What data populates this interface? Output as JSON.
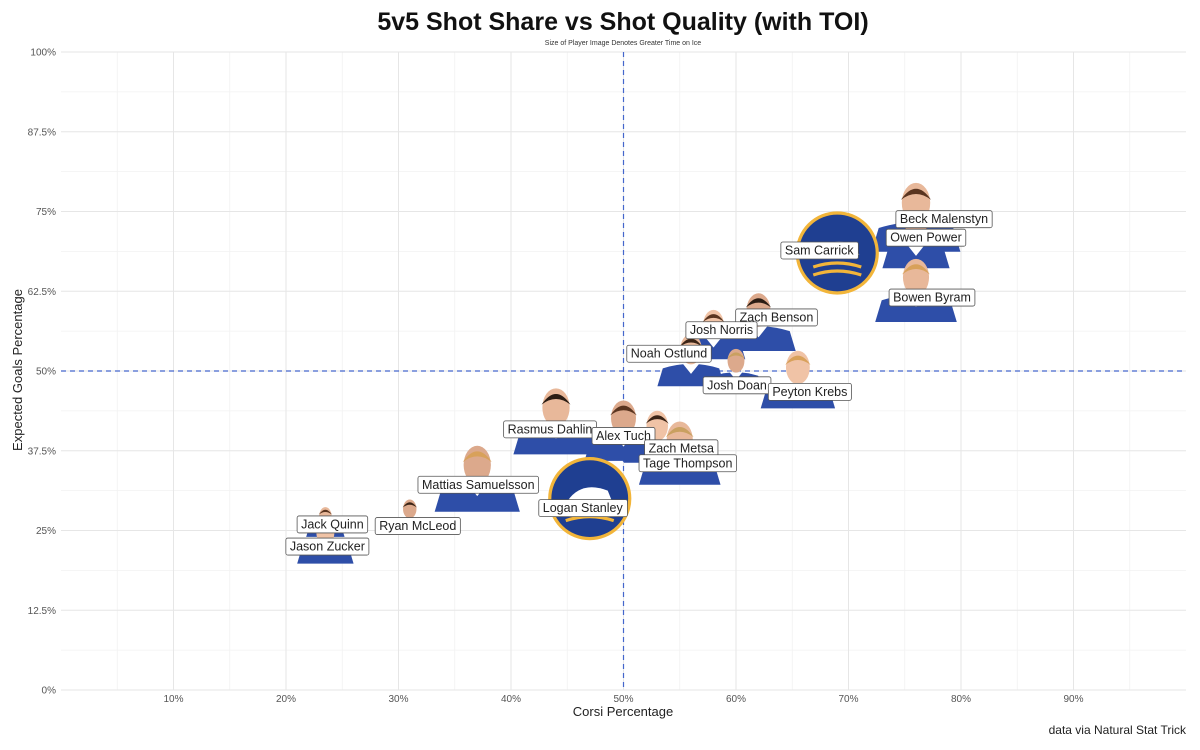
{
  "chart_data": {
    "type": "scatter",
    "title": "5v5 Shot Share vs Shot Quality (with TOI)",
    "subtitle": "Size of Player Image Denotes Greater Time on Ice",
    "xlabel": "Corsi Percentage",
    "ylabel": "Expected Goals Percentage",
    "caption": "data via Natural Stat Trick",
    "xlim": [
      0,
      100
    ],
    "ylim": [
      0,
      100
    ],
    "x_ticks": [
      10,
      20,
      30,
      40,
      50,
      60,
      70,
      80,
      90
    ],
    "x_tick_labels": [
      "10%",
      "20%",
      "30%",
      "40%",
      "50%",
      "60%",
      "70%",
      "80%",
      "90%"
    ],
    "y_ticks": [
      0,
      12.5,
      25,
      37.5,
      50,
      62.5,
      75,
      87.5,
      100
    ],
    "y_tick_labels": [
      "0%",
      "12.5%",
      "25%",
      "37.5%",
      "50%",
      "62.5%",
      "75%",
      "87.5%",
      "100%"
    ],
    "grid": true,
    "reference_lines": {
      "x": 50,
      "y": 50,
      "style": "dashed",
      "color": "#4466cc"
    },
    "marker": "player headshot / team logo",
    "points": [
      {
        "player": "Beck Malenstyn",
        "x": 76.0,
        "y": 74.5,
        "size": 0.9,
        "marker": "headshot"
      },
      {
        "player": "Owen Power",
        "x": 76.0,
        "y": 70.5,
        "size": 0.6,
        "marker": "headshot"
      },
      {
        "player": "Sam Carrick",
        "x": 69.0,
        "y": 68.5,
        "size": 1.0,
        "marker": "logo"
      },
      {
        "player": "Bowen Byram",
        "x": 76.0,
        "y": 63.0,
        "size": 0.8,
        "marker": "headshot"
      },
      {
        "player": "Zach Benson",
        "x": 62.0,
        "y": 58.0,
        "size": 0.7,
        "marker": "headshot"
      },
      {
        "player": "Josh Norris",
        "x": 58.0,
        "y": 56.0,
        "size": 0.55,
        "marker": "headshot"
      },
      {
        "player": "Noah Ostlund",
        "x": 56.0,
        "y": 52.0,
        "size": 0.6,
        "marker": "headshot"
      },
      {
        "player": "Josh Doan",
        "x": 60.0,
        "y": 50.5,
        "size": 0.4,
        "marker": "headshot"
      },
      {
        "player": "Peyton Krebs",
        "x": 65.5,
        "y": 49.0,
        "size": 0.7,
        "marker": "headshot"
      },
      {
        "player": "Rasmus Dahlin",
        "x": 44.0,
        "y": 42.5,
        "size": 0.85,
        "marker": "headshot"
      },
      {
        "player": "Alex Tuch",
        "x": 50.0,
        "y": 41.0,
        "size": 0.75,
        "marker": "headshot"
      },
      {
        "player": "Zach Metsa",
        "x": 53.0,
        "y": 40.0,
        "size": 0.6,
        "marker": "headshot"
      },
      {
        "player": "Tage Thompson",
        "x": 55.0,
        "y": 37.5,
        "size": 0.8,
        "marker": "headshot"
      },
      {
        "player": "Mattias Samuelsson",
        "x": 37.0,
        "y": 33.5,
        "size": 0.85,
        "marker": "headshot"
      },
      {
        "player": "Logan Stanley",
        "x": 47.0,
        "y": 30.0,
        "size": 1.0,
        "marker": "logo"
      },
      {
        "player": "Jack Quinn",
        "x": 23.5,
        "y": 26.5,
        "size": 0.2,
        "marker": "headshot"
      },
      {
        "player": "Ryan McLeod",
        "x": 31.0,
        "y": 27.5,
        "size": 0.25,
        "marker": "headshot"
      },
      {
        "player": "Jason Zucker",
        "x": 23.5,
        "y": 23.5,
        "size": 0.45,
        "marker": "headshot"
      }
    ],
    "colors": {
      "jersey": "#2e4ea8",
      "logo_fill": "#1f3f91",
      "logo_ring": "#f2b53a",
      "reference_line": "#4466cc",
      "grid": "#e6e6e6"
    }
  }
}
